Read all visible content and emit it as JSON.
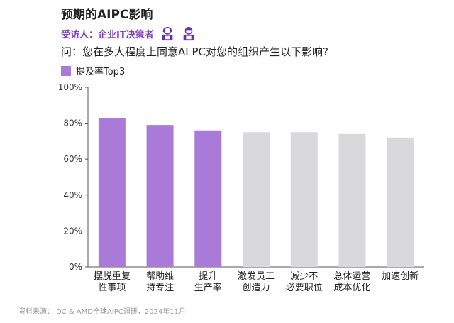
{
  "header": {
    "title": "预期的AIPC影响",
    "subtitle": "受访人：企业IT决策者",
    "question": "问：您在多大程度上同意AI PC对您的组织产生以下影响?"
  },
  "legend": {
    "label": "提及率Top3",
    "color": "#a97ad8"
  },
  "icons": [
    "female-user-icon",
    "male-user-icon"
  ],
  "colors": {
    "highlight": "#a97ad8",
    "other": "#d9d9db",
    "axis": "#555555"
  },
  "chart_data": {
    "type": "bar",
    "categories": [
      [
        "摆脱重复",
        "性事项"
      ],
      [
        "帮助维",
        "持专注"
      ],
      [
        "提升",
        "生产率"
      ],
      [
        "激发员工",
        "创造力"
      ],
      [
        "减少不",
        "必要职位"
      ],
      [
        "总体运营",
        "成本优化"
      ],
      [
        "加速创新"
      ]
    ],
    "values": [
      83,
      79,
      76,
      75,
      75,
      74,
      72
    ],
    "highlight": [
      true,
      true,
      true,
      false,
      false,
      false,
      false
    ],
    "ylim": [
      0,
      100
    ],
    "yticks": [
      0,
      20,
      40,
      60,
      80,
      100
    ],
    "ytick_labels": [
      "0%",
      "20%",
      "40%",
      "60%",
      "80%",
      "100%"
    ],
    "legend_position": "top-left"
  },
  "source": "资料来源：IDC & AMD全球AIPC调研，2024年11月"
}
